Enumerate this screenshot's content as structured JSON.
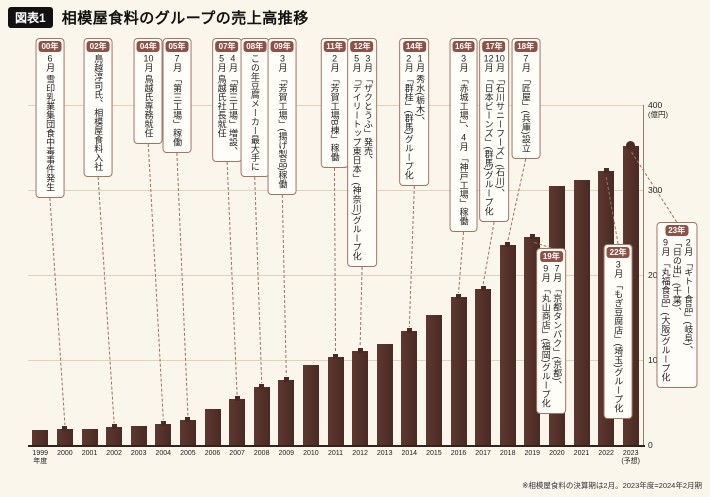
{
  "page": {
    "figure_tag": "図表1",
    "title": "相模屋食料のグループの売上高推移",
    "footnote": "※相模屋食料の決算期は2月。2023年度=2024年2月期"
  },
  "chart_data": {
    "type": "bar",
    "title": "相模屋食料のグループの売上高推移",
    "unit_label": "(億円)",
    "ylim": [
      0,
      400
    ],
    "yticks": [
      0,
      100,
      200,
      300,
      400
    ],
    "grid": true,
    "legend": "none",
    "categories": [
      "1999",
      "2000",
      "2001",
      "2002",
      "2003",
      "2004",
      "2005",
      "2006",
      "2007",
      "2008",
      "2009",
      "2010",
      "2011",
      "2012",
      "2013",
      "2014",
      "2015",
      "2016",
      "2017",
      "2018",
      "2019",
      "2020",
      "2021",
      "2022",
      "2023"
    ],
    "values": [
      18,
      19,
      19,
      21,
      22,
      25,
      30,
      42,
      54,
      68,
      77,
      94,
      104,
      111,
      119,
      134,
      153,
      174,
      184,
      235,
      245,
      305,
      312,
      322,
      352
    ],
    "xtick_notes": {
      "1999": "年度",
      "2023": "(予想)"
    },
    "last_value_is_forecast": true,
    "colors": {
      "bar": "#4a2a23",
      "bar_light": "#5d3830",
      "badge": "#8e5147",
      "callout_border": "#a47463",
      "connector": "#a0715f",
      "background": "#faf6ec"
    },
    "annotations": [
      {
        "year": "00年",
        "target": "2000",
        "lines": [
          "6月 雪印乳業集団食中毒事件発生"
        ]
      },
      {
        "year": "02年",
        "target": "2002",
        "lines": [
          "鳥越淳司氏、相模屋食料入社"
        ]
      },
      {
        "year": "04年",
        "target": "2004",
        "lines": [
          "10月 鳥越氏専務就任"
        ]
      },
      {
        "year": "05年",
        "target": "2005",
        "lines": [
          "7月 「第三工場」稼働"
        ]
      },
      {
        "year": "07年",
        "target": "2007",
        "lines": [
          "4月 「第三工場」増設、",
          "5月 鳥越氏社長就任"
        ]
      },
      {
        "year": "08年",
        "target": "2008",
        "lines": [
          "この年豆腐メーカー最大手に"
        ]
      },
      {
        "year": "09年",
        "target": "2009",
        "lines": [
          "3月 「芳賀工場」(揚げ製品)稼働"
        ]
      },
      {
        "year": "11年",
        "target": "2011",
        "lines": [
          "2月 「芳賀工場B棟」稼働"
        ]
      },
      {
        "year": "12年",
        "target": "2012",
        "lines": [
          "3月 「ザクとうふ」発売、",
          "5月 「デイリートップ東日本」(神奈川)グループ化"
        ]
      },
      {
        "year": "14年",
        "target": "2014",
        "lines": [
          "1月 秀水(栃木)、",
          "2月 「群桂」(群馬)グループ化"
        ]
      },
      {
        "year": "16年",
        "target": "2016",
        "lines": [
          "3月 「赤城工場」、4月 「神戸工場」稼働"
        ]
      },
      {
        "year": "17年",
        "target": "2017",
        "lines": [
          "10月 「石川サニーフーズ」(石川)、",
          "12月 「日本ビーンズ」(群馬)グループ化"
        ]
      },
      {
        "year": "18年",
        "target": "2018",
        "lines": [
          "7月 「匠屋」(兵庫)設立"
        ]
      },
      {
        "year": "19年",
        "target": "2019",
        "lines": [
          "7月 「京都タンパク」(京都)、",
          "9月 「丸山商店」(福岡)グループ化"
        ]
      },
      {
        "year": "22年",
        "target": "2022",
        "lines": [
          "3月 「もぎ豆腐店」(埼玉)グループ化"
        ]
      },
      {
        "year": "23年",
        "target": "2023",
        "lines": [
          "2月 「ギトー食品」(岐阜)、",
          "「日の出」(千葉)、",
          "9月 「丸福食品」(大阪)グループ化"
        ]
      }
    ]
  }
}
